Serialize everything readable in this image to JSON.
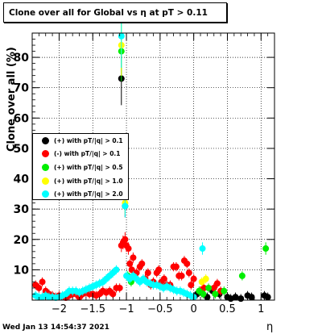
{
  "title": "Clone  over all for Global vs   η at pT > 0.11",
  "footer": {
    "timestamp": "Wed Jan 13 14:54:37 2021"
  },
  "chart_data": {
    "type": "scatter",
    "xlabel": "η",
    "ylabel": "Clone  over all (%)",
    "xlim": [
      -2.4,
      1.2
    ],
    "ylim": [
      0,
      88
    ],
    "x_ticks": [
      -2,
      -1.5,
      -1,
      -0.5,
      0,
      0.5,
      1
    ],
    "x_tick_labels": [
      "−2",
      "−1.5",
      "−1",
      "−0.5",
      "0",
      "0.5",
      "1"
    ],
    "y_ticks": [
      10,
      20,
      30,
      40,
      50,
      60,
      70,
      80
    ],
    "y_tick_labels": [
      "10",
      "20",
      "30",
      "40",
      "50",
      "60",
      "70",
      "80"
    ],
    "grid": true,
    "legend_position": "middle-left",
    "series": [
      {
        "name": "(+) with pT/|q| > 0.1",
        "color": "#000000",
        "points": [
          [
            -1.075,
            73
          ],
          [
            -1.02,
            31
          ],
          [
            0.05,
            2
          ],
          [
            0.12,
            2.5
          ],
          [
            0.2,
            1
          ],
          [
            0.28,
            3
          ],
          [
            0.38,
            2
          ],
          [
            0.5,
            1
          ],
          [
            0.55,
            0.5
          ],
          [
            0.62,
            1
          ],
          [
            0.7,
            0.5
          ],
          [
            0.8,
            1.5
          ],
          [
            0.86,
            1
          ],
          [
            1.05,
            1.5
          ],
          [
            1.1,
            1
          ]
        ]
      },
      {
        "name": "(-) with pT/|q| > 0.1",
        "color": "#ff0000",
        "points": [
          [
            -2.35,
            5
          ],
          [
            -2.3,
            4
          ],
          [
            -2.25,
            6
          ],
          [
            -2.2,
            3
          ],
          [
            -2.15,
            2
          ],
          [
            -2.1,
            1.5
          ],
          [
            -2.05,
            1
          ],
          [
            -2.0,
            1.5
          ],
          [
            -1.95,
            1
          ],
          [
            -1.9,
            0.8
          ],
          [
            -1.85,
            1.5
          ],
          [
            -1.8,
            2
          ],
          [
            -1.75,
            2
          ],
          [
            -1.7,
            1
          ],
          [
            -1.65,
            2
          ],
          [
            -1.6,
            2.5
          ],
          [
            -1.55,
            2
          ],
          [
            -1.5,
            2
          ],
          [
            -1.45,
            1.5
          ],
          [
            -1.4,
            2
          ],
          [
            -1.35,
            3
          ],
          [
            -1.3,
            2.5
          ],
          [
            -1.25,
            3
          ],
          [
            -1.2,
            2
          ],
          [
            -1.15,
            4
          ],
          [
            -1.1,
            4
          ],
          [
            -1.075,
            18
          ],
          [
            -1.05,
            19
          ],
          [
            -1.02,
            20
          ],
          [
            -1.0,
            18
          ],
          [
            -0.97,
            17
          ],
          [
            -0.95,
            12
          ],
          [
            -0.92,
            10
          ],
          [
            -0.9,
            14
          ],
          [
            -0.85,
            9
          ],
          [
            -0.8,
            11
          ],
          [
            -0.77,
            12
          ],
          [
            -0.72,
            7
          ],
          [
            -0.68,
            9
          ],
          [
            -0.64,
            5
          ],
          [
            -0.6,
            6
          ],
          [
            -0.55,
            9
          ],
          [
            -0.52,
            10
          ],
          [
            -0.48,
            6
          ],
          [
            -0.44,
            7
          ],
          [
            -0.4,
            5
          ],
          [
            -0.35,
            5
          ],
          [
            -0.3,
            11
          ],
          [
            -0.26,
            11
          ],
          [
            -0.22,
            8
          ],
          [
            -0.18,
            8
          ],
          [
            -0.14,
            13
          ],
          [
            -0.1,
            12
          ],
          [
            -0.07,
            9
          ],
          [
            -0.04,
            5
          ],
          [
            0.0,
            7
          ],
          [
            0.1,
            3
          ],
          [
            0.15,
            4
          ],
          [
            0.3,
            4
          ],
          [
            0.35,
            5.5
          ],
          [
            0.4,
            3
          ]
        ]
      },
      {
        "name": "(+) with pT/|q| > 0.5",
        "color": "#00ee00",
        "points": [
          [
            -1.075,
            82
          ],
          [
            -0.98,
            8
          ],
          [
            -0.93,
            6
          ],
          [
            0.08,
            3
          ],
          [
            0.14,
            2
          ],
          [
            0.22,
            4
          ],
          [
            0.32,
            2
          ],
          [
            0.45,
            3
          ],
          [
            0.72,
            8
          ],
          [
            1.07,
            17
          ]
        ]
      },
      {
        "name": "(+) with pT/|q| > 1.0",
        "color": "#ffff00",
        "points": [
          [
            -1.075,
            84
          ],
          [
            -1.02,
            32
          ],
          [
            0.12,
            6
          ],
          [
            0.18,
            7
          ]
        ]
      },
      {
        "name": "(+) with pT/|q| > 2.0",
        "color": "#00ffff",
        "points": [
          [
            -2.35,
            1.5
          ],
          [
            -2.3,
            1
          ],
          [
            -2.25,
            1
          ],
          [
            -2.2,
            1.5
          ],
          [
            -2.15,
            1
          ],
          [
            -2.1,
            1
          ],
          [
            -2.05,
            0.8
          ],
          [
            -2.0,
            1
          ],
          [
            -1.95,
            1.5
          ],
          [
            -1.9,
            2
          ],
          [
            -1.85,
            3
          ],
          [
            -1.8,
            3
          ],
          [
            -1.75,
            3
          ],
          [
            -1.7,
            2.5
          ],
          [
            -1.65,
            3
          ],
          [
            -1.6,
            3.5
          ],
          [
            -1.55,
            4
          ],
          [
            -1.5,
            4.5
          ],
          [
            -1.45,
            5
          ],
          [
            -1.4,
            5.5
          ],
          [
            -1.35,
            6
          ],
          [
            -1.3,
            7
          ],
          [
            -1.25,
            8
          ],
          [
            -1.2,
            9
          ],
          [
            -1.15,
            10
          ],
          [
            -1.075,
            87
          ],
          [
            -1.02,
            31
          ],
          [
            -1.0,
            8
          ],
          [
            -0.95,
            7
          ],
          [
            -0.9,
            8
          ],
          [
            -0.85,
            7
          ],
          [
            -0.8,
            6
          ],
          [
            -0.75,
            7
          ],
          [
            -0.7,
            6
          ],
          [
            -0.65,
            5.5
          ],
          [
            -0.6,
            5
          ],
          [
            -0.55,
            5
          ],
          [
            -0.5,
            4.5
          ],
          [
            -0.45,
            4
          ],
          [
            -0.4,
            4.5
          ],
          [
            -0.35,
            4
          ],
          [
            -0.3,
            3.5
          ],
          [
            -0.25,
            3
          ],
          [
            -0.2,
            3
          ],
          [
            -0.15,
            2.5
          ],
          [
            -0.1,
            2
          ],
          [
            -0.05,
            1.5
          ],
          [
            0.0,
            1
          ],
          [
            0.13,
            17
          ]
        ]
      }
    ]
  }
}
